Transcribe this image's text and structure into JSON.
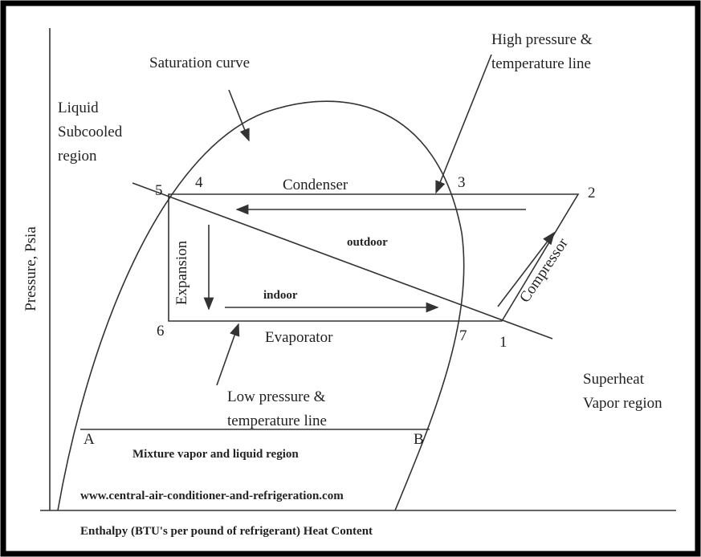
{
  "diagram": {
    "y_axis_label": "Pressure, Psia",
    "x_axis_label": "Enthalpy (BTU's per pound of refrigerant) Heat Content",
    "regions": {
      "saturation": "Saturation curve",
      "subcooled": [
        "Liquid",
        "Subcooled",
        "region"
      ],
      "high_line": [
        "High pressure &",
        "temperature line"
      ],
      "low_line": [
        "Low pressure &",
        "temperature line"
      ],
      "superheat": [
        "Superheat",
        "Vapor region"
      ],
      "mixture": "Mixture vapor and liquid region"
    },
    "processes": {
      "condenser": "Condenser",
      "evaporator": "Evaporator",
      "expansion": "Expansion",
      "compressor": "Compressor",
      "outdoor": "outdoor",
      "indoor": "indoor"
    },
    "points": [
      "1",
      "2",
      "3",
      "4",
      "5",
      "6",
      "7",
      "A",
      "B"
    ],
    "website": "www.central-air-conditioner-and-refrigeration.com"
  }
}
